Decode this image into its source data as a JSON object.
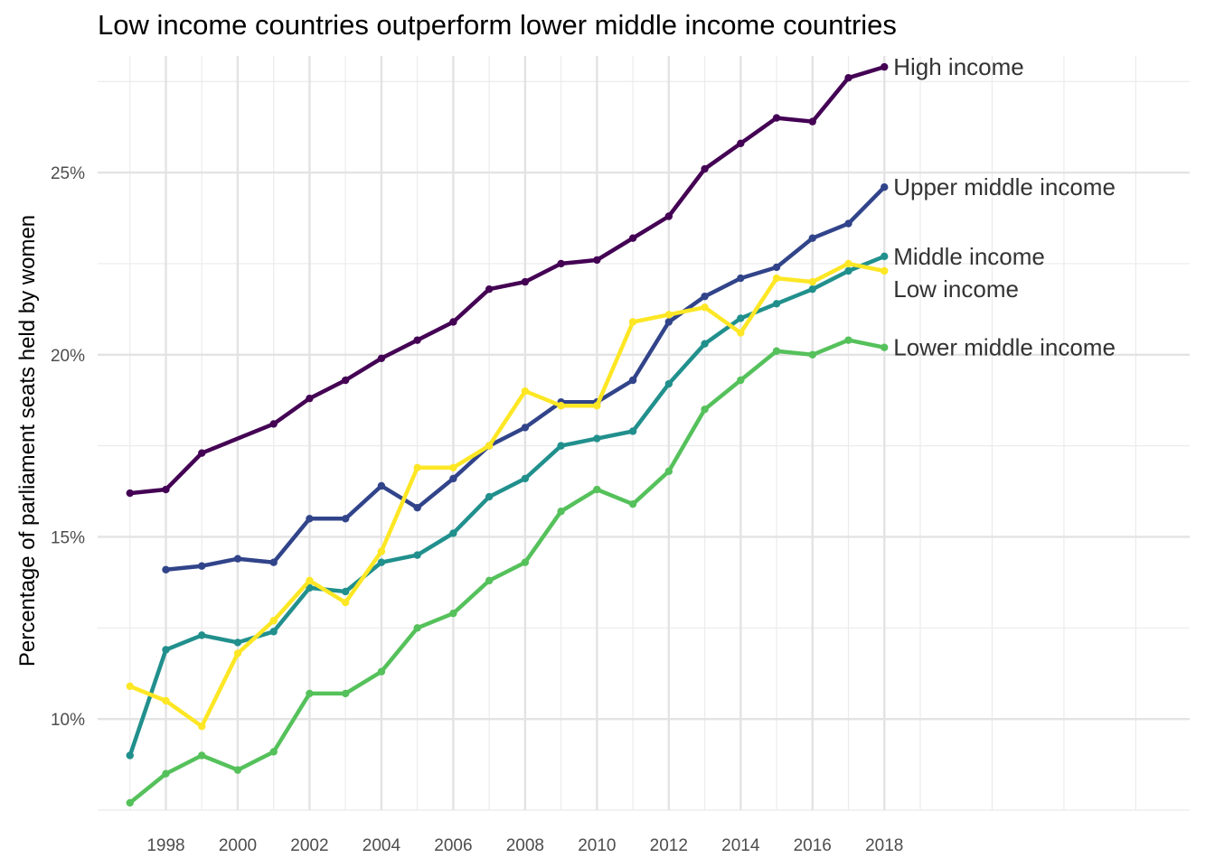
{
  "chart_data": {
    "type": "line",
    "title": "Low income countries outperform lower middle income countries",
    "xlabel": "",
    "ylabel": "Percentage of parliament seats held by women",
    "xlim": [
      1996.1,
      2026.5
    ],
    "ylim": [
      7.5,
      28.2
    ],
    "x_ticks": [
      1998,
      2000,
      2002,
      2004,
      2006,
      2008,
      2010,
      2012,
      2014,
      2016,
      2018
    ],
    "x_tick_labels": [
      "1998",
      "2000",
      "2002",
      "2004",
      "2006",
      "2008",
      "2010",
      "2012",
      "2014",
      "2016",
      "2018"
    ],
    "y_ticks": [
      10,
      15,
      20,
      25
    ],
    "y_tick_labels": [
      "10%",
      "15%",
      "20%",
      "25%"
    ],
    "y_minor_ticks": [
      7.5,
      12.5,
      17.5,
      22.5,
      27.5
    ],
    "grid": true,
    "legend": "direct labels at line ends",
    "series": [
      {
        "name": "High income",
        "color": "#440154",
        "x": [
          1997,
          1998,
          1999,
          2001,
          2002,
          2003,
          2004,
          2005,
          2006,
          2007,
          2008,
          2009,
          2010,
          2011,
          2012,
          2013,
          2014,
          2015,
          2016,
          2017,
          2018
        ],
        "values": [
          16.2,
          16.3,
          17.3,
          18.1,
          18.8,
          19.3,
          19.9,
          20.4,
          20.9,
          21.8,
          22.0,
          22.5,
          22.6,
          23.2,
          23.8,
          25.1,
          25.8,
          26.5,
          26.4,
          27.6,
          27.9
        ]
      },
      {
        "name": "Upper middle income",
        "color": "#31448a",
        "x": [
          1998,
          1999,
          2000,
          2001,
          2002,
          2003,
          2004,
          2005,
          2006,
          2007,
          2008,
          2009,
          2010,
          2011,
          2012,
          2013,
          2014,
          2015,
          2016,
          2017,
          2018
        ],
        "values": [
          14.1,
          14.2,
          14.4,
          14.3,
          15.5,
          15.5,
          16.4,
          15.8,
          16.6,
          17.5,
          18.0,
          18.7,
          18.7,
          19.3,
          20.9,
          21.6,
          22.1,
          22.4,
          23.2,
          23.6,
          24.6
        ]
      },
      {
        "name": "Middle income",
        "color": "#21908d",
        "x": [
          1997,
          1998,
          1999,
          2000,
          2001,
          2002,
          2003,
          2004,
          2005,
          2006,
          2007,
          2008,
          2009,
          2010,
          2011,
          2012,
          2013,
          2014,
          2015,
          2016,
          2017,
          2018
        ],
        "values": [
          9.0,
          11.9,
          12.3,
          12.1,
          12.4,
          13.6,
          13.5,
          14.3,
          14.5,
          15.1,
          16.1,
          16.6,
          17.5,
          17.7,
          17.9,
          19.2,
          20.3,
          21.0,
          21.4,
          21.8,
          22.3,
          22.7
        ]
      },
      {
        "name": "Low income",
        "color": "#fde725",
        "x": [
          1997,
          1998,
          1999,
          2000,
          2001,
          2002,
          2003,
          2004,
          2005,
          2006,
          2007,
          2008,
          2009,
          2010,
          2011,
          2012,
          2013,
          2014,
          2015,
          2016,
          2017,
          2018
        ],
        "values": [
          10.9,
          10.5,
          9.8,
          11.8,
          12.7,
          13.8,
          13.2,
          14.6,
          16.9,
          16.9,
          17.5,
          19.0,
          18.6,
          18.6,
          20.9,
          21.1,
          21.3,
          20.6,
          22.1,
          22.0,
          22.5,
          22.3
        ]
      },
      {
        "name": "Lower middle income",
        "color": "#55c15b",
        "x": [
          1997,
          1998,
          1999,
          2000,
          2001,
          2002,
          2003,
          2004,
          2005,
          2006,
          2007,
          2008,
          2009,
          2010,
          2011,
          2012,
          2013,
          2014,
          2015,
          2016,
          2017,
          2018
        ],
        "values": [
          7.7,
          8.5,
          9.0,
          8.6,
          9.1,
          10.7,
          10.7,
          11.3,
          12.5,
          12.9,
          13.8,
          14.3,
          15.7,
          16.3,
          15.9,
          16.8,
          18.5,
          19.3,
          20.1,
          20.0,
          20.4,
          20.2
        ]
      }
    ]
  }
}
